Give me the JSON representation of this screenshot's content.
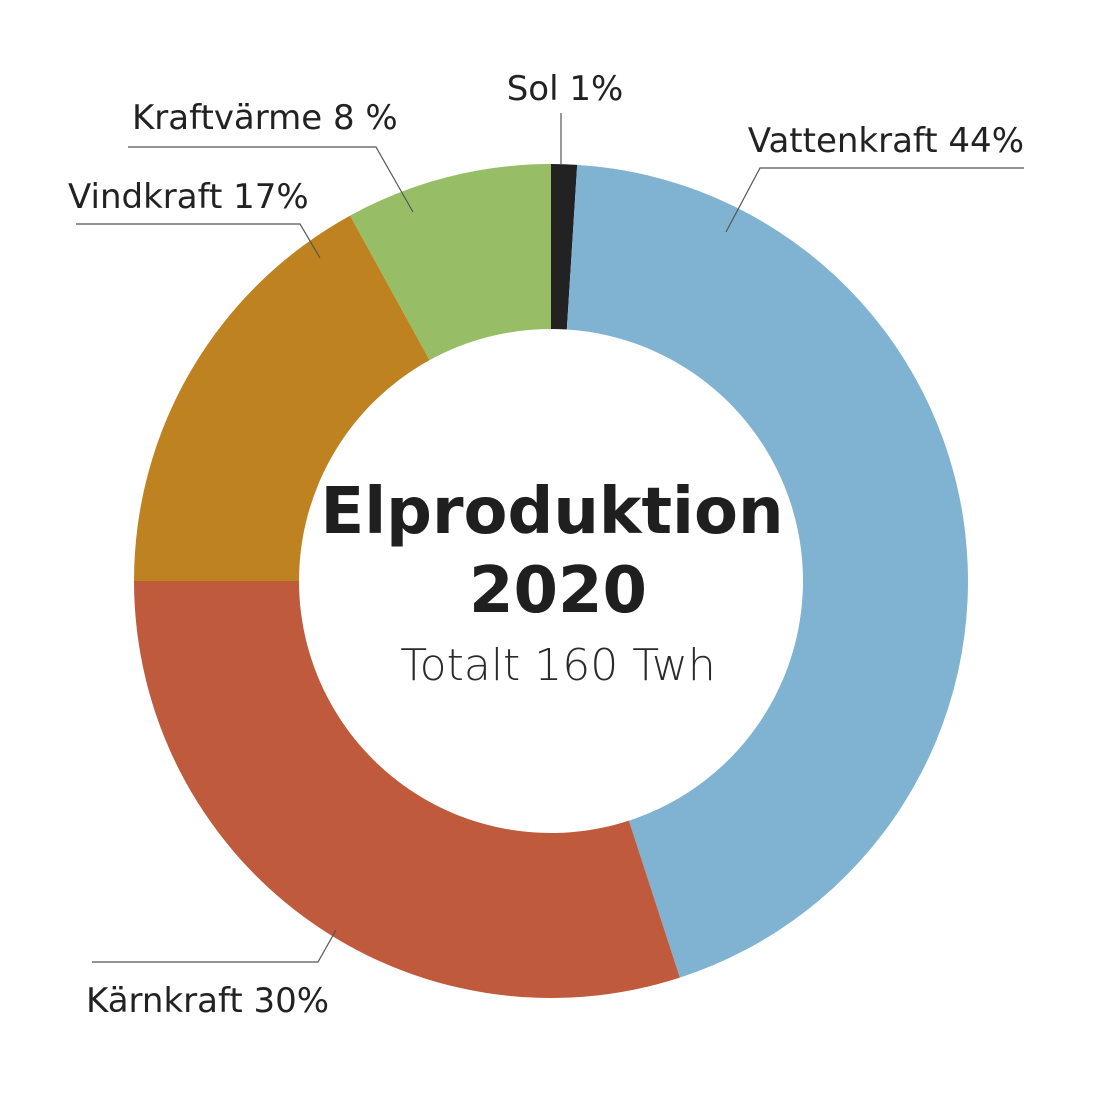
{
  "chart_data": {
    "type": "pie",
    "variant": "donut",
    "title": "Elproduktion",
    "title_year": "2020",
    "subtitle": "Totalt 160 Twh",
    "series": [
      {
        "name": "Elproduktion 2020",
        "slices": [
          {
            "label": "Sol 1%",
            "category": "Sol",
            "value": 1,
            "color": "#222222"
          },
          {
            "label": "Vattenkraft 44%",
            "category": "Vattenkraft",
            "value": 44,
            "color": "#7fb3d1"
          },
          {
            "label": "Kärnkraft 30%",
            "category": "Kärnkraft",
            "value": 30,
            "color": "#c05a3c"
          },
          {
            "label": "Vindkraft 17%",
            "category": "Vindkraft",
            "value": 17,
            "color": "#be8320"
          },
          {
            "label": "Kraftvärme 8 %",
            "category": "Kraftvärme",
            "value": 8,
            "color": "#97be66"
          }
        ]
      }
    ]
  }
}
